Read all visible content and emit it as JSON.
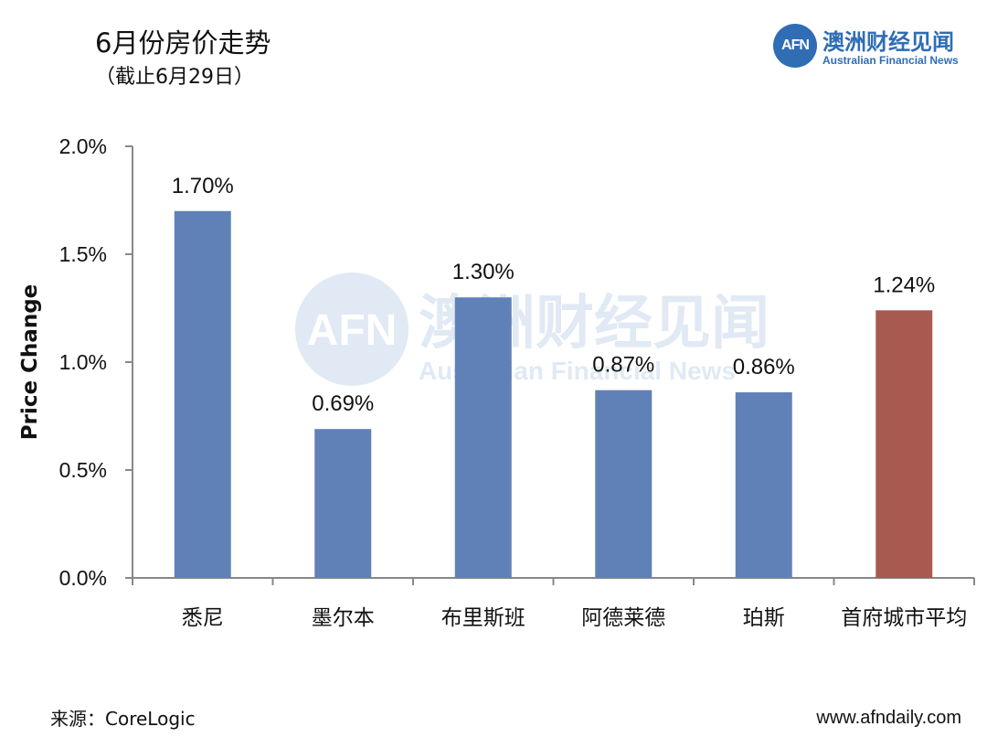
{
  "header": {
    "title": "6月份房价走势",
    "subtitle": "（截止6月29日）"
  },
  "logo": {
    "mark": "AFN",
    "name_cn": "澳洲财经见闻",
    "name_en": "Australian Financial News"
  },
  "watermark": {
    "mark": "AFN",
    "name_cn": "澳洲财经见闻",
    "name_en": "Australian Financial News"
  },
  "footer": {
    "source": "来源：CoreLogic",
    "website": "www.afndaily.com"
  },
  "colors": {
    "city_bar": "#6081b8",
    "average_bar": "#a85a50",
    "brand": "#2f6db5"
  },
  "chart_data": {
    "type": "bar",
    "title": "6月份房价走势",
    "subtitle": "（截止6月29日）",
    "ylabel": "Price Change",
    "xlabel": "",
    "ylim": [
      0,
      2.0
    ],
    "yticks": [
      0,
      0.5,
      1.0,
      1.5,
      2.0
    ],
    "ytick_labels": [
      "0.0%",
      "0.5%",
      "1.0%",
      "1.5%",
      "2.0%"
    ],
    "categories": [
      "悉尼",
      "墨尔本",
      "布里斯班",
      "阿德莱德",
      "珀斯",
      "首府城市平均"
    ],
    "values": [
      1.7,
      0.69,
      1.3,
      0.87,
      0.86,
      1.24
    ],
    "value_labels": [
      "1.70%",
      "0.69%",
      "1.30%",
      "0.87%",
      "0.86%",
      "1.24%"
    ],
    "bar_colors": [
      "#6081b8",
      "#6081b8",
      "#6081b8",
      "#6081b8",
      "#6081b8",
      "#a85a50"
    ],
    "grid": false,
    "legend": "none"
  }
}
